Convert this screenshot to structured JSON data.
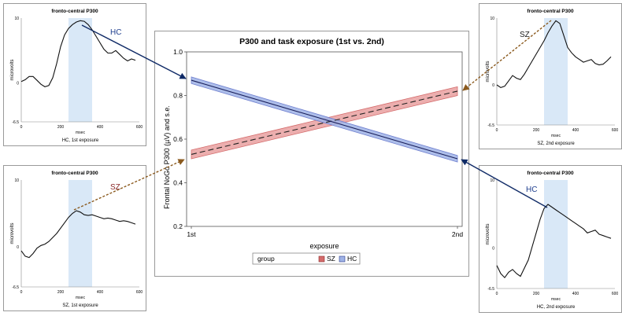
{
  "colors": {
    "hc": "#6f7fcf",
    "hc_band": "#9fb3e6",
    "sz": "#d46b6b",
    "sz_band": "#e9a0a0",
    "shade": "#d9e8f7",
    "arrow_hc": "#0f2a66",
    "arrow_sz": "#8b5a1e"
  },
  "chart_data": [
    {
      "type": "line",
      "title": "P300 and task exposure (1st vs. 2nd)",
      "xlabel": "exposure",
      "ylabel": "Frontal NoGo P300 (µV) and s.e.",
      "categories": [
        "1st",
        "2nd"
      ],
      "ylim": [
        0.2,
        1.0
      ],
      "yticks": [
        "0.2",
        "0.4",
        "0.6",
        "0.8",
        "1.0"
      ],
      "legend": {
        "title": "group",
        "position": "bottom"
      },
      "series": [
        {
          "name": "SZ",
          "values": [
            0.53,
            0.82
          ],
          "se": 0.02,
          "color": "sz",
          "band": "sz_band",
          "dashed": true
        },
        {
          "name": "HC",
          "values": [
            0.87,
            0.51
          ],
          "se": 0.015,
          "color": "hc",
          "band": "hc_band",
          "dashed": false
        }
      ]
    },
    {
      "type": "line",
      "title": "fronto-central P300",
      "xlabel": "msec",
      "ylabel": "microvolts",
      "caption": "HC, 1st exposure",
      "xlim": [
        0,
        600
      ],
      "ylim": [
        -6,
        10
      ],
      "xticks": [
        "0",
        "200",
        "400",
        "600"
      ],
      "yticks": [
        "-6.5",
        "0",
        "10"
      ],
      "shade": [
        240,
        360
      ],
      "x": [
        0,
        20,
        40,
        60,
        80,
        100,
        120,
        140,
        160,
        180,
        200,
        220,
        240,
        260,
        280,
        300,
        320,
        340,
        360,
        380,
        400,
        420,
        440,
        460,
        480,
        500,
        520,
        540,
        560,
        580
      ],
      "y": [
        0.2,
        0.5,
        1.0,
        1.0,
        0.4,
        -0.2,
        -0.6,
        -0.4,
        0.8,
        3.0,
        5.6,
        7.4,
        8.4,
        9.0,
        9.4,
        9.6,
        9.5,
        9.0,
        8.2,
        7.2,
        6.2,
        5.2,
        4.6,
        4.6,
        5.0,
        4.4,
        3.8,
        3.4,
        3.7,
        3.5
      ]
    },
    {
      "type": "line",
      "title": "fronto-central P300",
      "xlabel": "msec",
      "ylabel": "microvolts",
      "caption": "SZ, 1st exposure",
      "xlim": [
        0,
        600
      ],
      "ylim": [
        -6,
        10
      ],
      "xticks": [
        "0",
        "200",
        "400",
        "600"
      ],
      "yticks": [
        "-6.5",
        "0",
        "10"
      ],
      "shade": [
        240,
        360
      ],
      "x": [
        0,
        20,
        40,
        60,
        80,
        100,
        120,
        140,
        160,
        180,
        200,
        220,
        240,
        260,
        280,
        300,
        320,
        340,
        360,
        380,
        400,
        420,
        440,
        460,
        480,
        500,
        520,
        540,
        560,
        580
      ],
      "y": [
        -0.6,
        -1.4,
        -1.6,
        -1.0,
        -0.2,
        0.2,
        0.4,
        0.8,
        1.4,
        2.0,
        2.8,
        3.6,
        4.4,
        5.0,
        5.4,
        5.2,
        4.8,
        4.7,
        4.8,
        4.6,
        4.4,
        4.2,
        4.3,
        4.2,
        4.0,
        3.8,
        3.9,
        3.8,
        3.6,
        3.4
      ]
    },
    {
      "type": "line",
      "title": "fronto-central P300",
      "xlabel": "msec",
      "ylabel": "microvolts",
      "caption": "SZ, 2nd exposure",
      "xlim": [
        0,
        600
      ],
      "ylim": [
        -6,
        10
      ],
      "xticks": [
        "0",
        "200",
        "400",
        "600"
      ],
      "yticks": [
        "-6.5",
        "0",
        "10"
      ],
      "shade": [
        240,
        360
      ],
      "x": [
        0,
        20,
        40,
        60,
        80,
        100,
        120,
        140,
        160,
        180,
        200,
        220,
        240,
        260,
        280,
        300,
        320,
        340,
        360,
        380,
        400,
        420,
        440,
        460,
        480,
        500,
        520,
        540,
        560,
        580
      ],
      "y": [
        0.0,
        -0.4,
        -0.2,
        0.6,
        1.4,
        1.0,
        0.8,
        1.6,
        2.6,
        3.6,
        4.6,
        5.6,
        6.6,
        7.8,
        8.8,
        9.6,
        9.2,
        7.4,
        5.6,
        4.8,
        4.2,
        3.8,
        3.4,
        3.6,
        3.8,
        3.2,
        3.0,
        3.1,
        3.6,
        4.2
      ]
    },
    {
      "type": "line",
      "title": "fronto-central P300",
      "xlabel": "msec",
      "ylabel": "microvolts",
      "caption": "HC, 2nd exposure",
      "xlim": [
        0,
        600
      ],
      "ylim": [
        -6,
        10
      ],
      "xticks": [
        "0",
        "200",
        "400",
        "600"
      ],
      "yticks": [
        "-6.5",
        "0",
        "10"
      ],
      "shade": [
        240,
        360
      ],
      "x": [
        0,
        20,
        40,
        60,
        80,
        100,
        120,
        140,
        160,
        180,
        200,
        220,
        240,
        260,
        280,
        300,
        320,
        340,
        360,
        380,
        400,
        420,
        440,
        460,
        480,
        500,
        520,
        540,
        560,
        580
      ],
      "y": [
        -2.6,
        -3.8,
        -4.4,
        -3.6,
        -3.2,
        -3.8,
        -4.2,
        -3.0,
        -1.8,
        0.2,
        2.2,
        4.2,
        5.8,
        6.4,
        6.0,
        5.6,
        5.2,
        4.8,
        4.4,
        4.0,
        3.6,
        3.2,
        2.8,
        2.2,
        2.4,
        2.6,
        2.0,
        1.8,
        1.6,
        1.4
      ]
    }
  ],
  "annotations": {
    "hc_1st": "HC",
    "sz_1st": "SZ",
    "sz_2nd": "SZ",
    "hc_2nd": "HC"
  }
}
